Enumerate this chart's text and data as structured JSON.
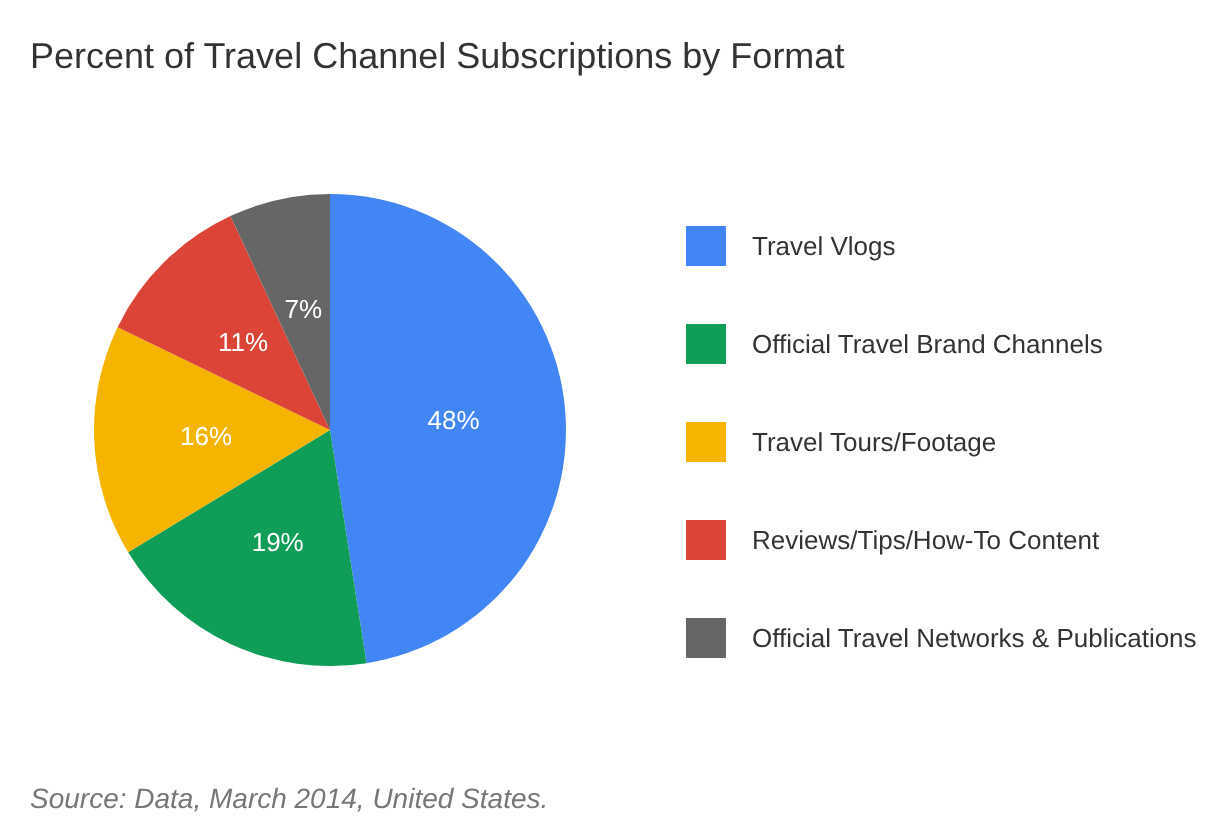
{
  "chart_data": {
    "type": "pie",
    "title": "Percent of Travel Channel Subscriptions by Format",
    "categories": [
      "Travel Vlogs",
      "Official Travel Brand Channels",
      "Travel Tours/Footage",
      "Reviews/Tips/How-To Content",
      "Official Travel Networks & Publications"
    ],
    "values": [
      48,
      19,
      16,
      11,
      7
    ],
    "colors": [
      "#4285f4",
      "#0f9d58",
      "#f4b400",
      "#db4437",
      "#666666"
    ],
    "value_labels": [
      "48%",
      "19%",
      "16%",
      "11%",
      "7%"
    ],
    "legend": "right",
    "annotations": [
      "Source: Data, March 2014, United States."
    ]
  }
}
